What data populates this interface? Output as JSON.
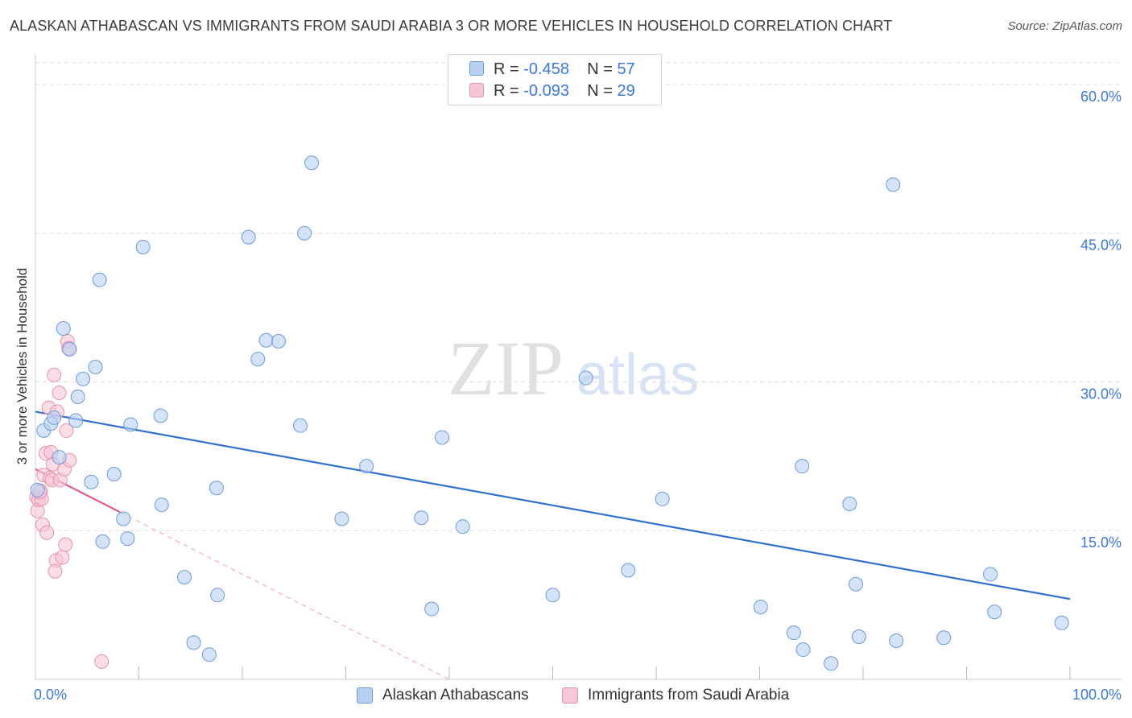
{
  "title": "ALASKAN ATHABASCAN VS IMMIGRANTS FROM SAUDI ARABIA 3 OR MORE VEHICLES IN HOUSEHOLD CORRELATION CHART",
  "source": "Source: ZipAtlas.com",
  "watermark": {
    "zip": "ZIP",
    "atlas": "atlas"
  },
  "legend": {
    "series": [
      {
        "r_label": "R = ",
        "r_value": "-0.458",
        "n_label": "N = ",
        "n_value": "57"
      },
      {
        "r_label": "R = ",
        "r_value": "-0.093",
        "n_label": "N = ",
        "n_value": "29"
      }
    ],
    "bottom": [
      "Alaskan Athabascans",
      "Immigrants from Saudi Arabia"
    ]
  },
  "colors": {
    "blue_fill": "#b8d1f3",
    "blue_stroke": "#6c9ad6",
    "blue_line": "#2f6fcf",
    "pink_fill": "#f8c6d4",
    "pink_stroke": "#e592ad",
    "pink_line": "#e0608a",
    "tick_text": "#3b78d8",
    "grid": "#dddddd"
  },
  "chart_data": {
    "type": "scatter",
    "title": "ALASKAN ATHABASCAN VS IMMIGRANTS FROM SAUDI ARABIA 3 OR MORE VEHICLES IN HOUSEHOLD CORRELATION CHART",
    "xlabel": "",
    "ylabel": "3 or more Vehicles in Household",
    "xlim": [
      0,
      100
    ],
    "ylim": [
      0,
      63
    ],
    "x_tick_labels": [
      {
        "value": 0,
        "label": "0.0%"
      },
      {
        "value": 100,
        "label": "100.0%"
      }
    ],
    "y_ticks": [
      {
        "value": 15,
        "label": "15.0%"
      },
      {
        "value": 30,
        "label": "30.0%"
      },
      {
        "value": 45,
        "label": "45.0%"
      },
      {
        "value": 60,
        "label": "60.0%"
      }
    ],
    "series": [
      {
        "name": "Alaskan Athabascans",
        "trend": {
          "x": [
            0,
            100
          ],
          "y": [
            27.0,
            8.1
          ],
          "solid_to": 100
        },
        "points": [
          {
            "x": 0.8,
            "y": 25.1
          },
          {
            "x": 1.5,
            "y": 25.8
          },
          {
            "x": 1.8,
            "y": 26.4
          },
          {
            "x": 2.3,
            "y": 22.4
          },
          {
            "x": 2.7,
            "y": 35.4
          },
          {
            "x": 3.3,
            "y": 33.3
          },
          {
            "x": 4.1,
            "y": 28.5
          },
          {
            "x": 3.9,
            "y": 26.1
          },
          {
            "x": 4.6,
            "y": 30.3
          },
          {
            "x": 5.4,
            "y": 19.9
          },
          {
            "x": 5.8,
            "y": 31.5
          },
          {
            "x": 6.2,
            "y": 40.3
          },
          {
            "x": 6.5,
            "y": 13.9
          },
          {
            "x": 7.6,
            "y": 20.7
          },
          {
            "x": 8.5,
            "y": 16.2
          },
          {
            "x": 8.9,
            "y": 14.2
          },
          {
            "x": 9.2,
            "y": 25.7
          },
          {
            "x": 10.4,
            "y": 43.6
          },
          {
            "x": 12.1,
            "y": 26.6
          },
          {
            "x": 12.2,
            "y": 17.6
          },
          {
            "x": 14.4,
            "y": 10.3
          },
          {
            "x": 15.3,
            "y": 3.7
          },
          {
            "x": 16.8,
            "y": 2.5
          },
          {
            "x": 17.5,
            "y": 19.3
          },
          {
            "x": 17.6,
            "y": 8.5
          },
          {
            "x": 20.6,
            "y": 44.6
          },
          {
            "x": 21.5,
            "y": 32.3
          },
          {
            "x": 22.3,
            "y": 34.2
          },
          {
            "x": 23.5,
            "y": 34.1
          },
          {
            "x": 25.6,
            "y": 25.6
          },
          {
            "x": 26.0,
            "y": 45.0
          },
          {
            "x": 26.7,
            "y": 52.1
          },
          {
            "x": 29.6,
            "y": 16.2
          },
          {
            "x": 32.0,
            "y": 21.5
          },
          {
            "x": 37.3,
            "y": 16.3
          },
          {
            "x": 38.3,
            "y": 7.1
          },
          {
            "x": 39.3,
            "y": 24.4
          },
          {
            "x": 41.3,
            "y": 15.4
          },
          {
            "x": 50.0,
            "y": 8.5
          },
          {
            "x": 53.2,
            "y": 30.4
          },
          {
            "x": 57.3,
            "y": 11.0
          },
          {
            "x": 60.6,
            "y": 18.2
          },
          {
            "x": 70.1,
            "y": 7.3
          },
          {
            "x": 73.3,
            "y": 4.7
          },
          {
            "x": 74.1,
            "y": 21.5
          },
          {
            "x": 74.2,
            "y": 3.0
          },
          {
            "x": 76.9,
            "y": 1.6
          },
          {
            "x": 78.7,
            "y": 17.7
          },
          {
            "x": 79.3,
            "y": 9.6
          },
          {
            "x": 79.6,
            "y": 4.3
          },
          {
            "x": 83.2,
            "y": 3.9
          },
          {
            "x": 82.9,
            "y": 49.9
          },
          {
            "x": 87.8,
            "y": 4.2
          },
          {
            "x": 92.3,
            "y": 10.6
          },
          {
            "x": 92.7,
            "y": 6.8
          },
          {
            "x": 99.2,
            "y": 5.7
          },
          {
            "x": 0.2,
            "y": 19.1
          }
        ]
      },
      {
        "name": "Immigrants from Saudi Arabia",
        "trend": {
          "x": [
            0,
            40.0
          ],
          "y": [
            21.2,
            0
          ],
          "solid_to": 8.2
        },
        "points": [
          {
            "x": 0.1,
            "y": 18.4
          },
          {
            "x": 0.2,
            "y": 17.0
          },
          {
            "x": 0.3,
            "y": 18.1
          },
          {
            "x": 0.5,
            "y": 19.0
          },
          {
            "x": 0.6,
            "y": 18.2
          },
          {
            "x": 0.7,
            "y": 15.6
          },
          {
            "x": 0.8,
            "y": 20.6
          },
          {
            "x": 1.0,
            "y": 22.8
          },
          {
            "x": 1.1,
            "y": 14.8
          },
          {
            "x": 1.3,
            "y": 27.4
          },
          {
            "x": 1.4,
            "y": 20.3
          },
          {
            "x": 1.5,
            "y": 22.9
          },
          {
            "x": 1.6,
            "y": 20.1
          },
          {
            "x": 1.7,
            "y": 21.7
          },
          {
            "x": 1.8,
            "y": 30.7
          },
          {
            "x": 2.0,
            "y": 12.0
          },
          {
            "x": 1.9,
            "y": 10.9
          },
          {
            "x": 2.1,
            "y": 27.0
          },
          {
            "x": 2.3,
            "y": 28.9
          },
          {
            "x": 2.4,
            "y": 20.1
          },
          {
            "x": 2.6,
            "y": 12.3
          },
          {
            "x": 2.8,
            "y": 21.2
          },
          {
            "x": 2.9,
            "y": 13.6
          },
          {
            "x": 3.0,
            "y": 25.1
          },
          {
            "x": 3.1,
            "y": 34.1
          },
          {
            "x": 3.2,
            "y": 33.4
          },
          {
            "x": 3.3,
            "y": 22.1
          },
          {
            "x": 6.4,
            "y": 1.8
          },
          {
            "x": 0.4,
            "y": 18.9
          }
        ]
      }
    ]
  }
}
